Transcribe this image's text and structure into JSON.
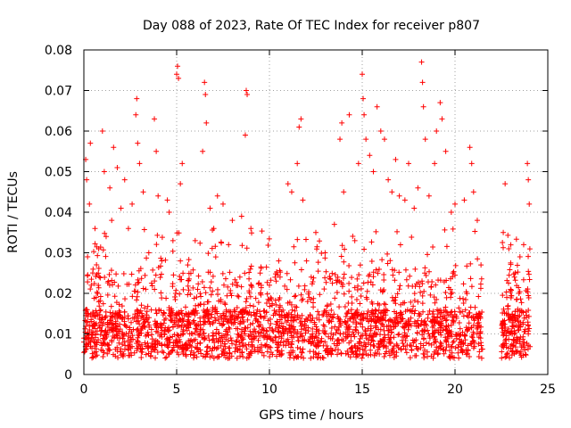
{
  "chart_data": {
    "type": "scatter",
    "title": "Day 088 of 2023, Rate Of TEC Index for receiver p807",
    "xlabel": "GPS time / hours",
    "ylabel": "ROTI / TECUs",
    "xlim": [
      0,
      25
    ],
    "ylim": [
      0,
      0.08
    ],
    "xticks": [
      0,
      5,
      10,
      15,
      20,
      25
    ],
    "yticks": [
      0,
      0.01,
      0.02,
      0.03,
      0.04,
      0.05,
      0.06,
      0.07,
      0.08
    ],
    "xtick_labels": [
      "0",
      "5",
      "10",
      "15",
      "20",
      "25"
    ],
    "ytick_labels": [
      "0",
      "0.01",
      "0.02",
      "0.03",
      "0.04",
      "0.05",
      "0.06",
      "0.07",
      "0.08"
    ],
    "grid": true,
    "marker": "+",
    "series_color": "#ff0000",
    "data_gap_hours": [
      21.5,
      22.5
    ],
    "points": [
      [
        0.0,
        0.008
      ],
      [
        0.1,
        0.053
      ],
      [
        0.15,
        0.048
      ],
      [
        0.2,
        0.029
      ],
      [
        0.3,
        0.042
      ],
      [
        0.35,
        0.057
      ],
      [
        0.4,
        0.022
      ],
      [
        0.5,
        0.012
      ],
      [
        0.6,
        0.036
      ],
      [
        0.8,
        0.031
      ],
      [
        1.0,
        0.06
      ],
      [
        1.1,
        0.05
      ],
      [
        1.2,
        0.034
      ],
      [
        1.4,
        0.046
      ],
      [
        1.5,
        0.038
      ],
      [
        1.6,
        0.056
      ],
      [
        1.8,
        0.051
      ],
      [
        2.0,
        0.041
      ],
      [
        2.2,
        0.048
      ],
      [
        2.4,
        0.036
      ],
      [
        2.6,
        0.042
      ],
      [
        2.8,
        0.064
      ],
      [
        2.85,
        0.068
      ],
      [
        2.9,
        0.057
      ],
      [
        3.0,
        0.052
      ],
      [
        3.2,
        0.045
      ],
      [
        3.5,
        0.03
      ],
      [
        3.8,
        0.063
      ],
      [
        3.9,
        0.055
      ],
      [
        4.0,
        0.044
      ],
      [
        4.2,
        0.028
      ],
      [
        4.5,
        0.043
      ],
      [
        4.6,
        0.04
      ],
      [
        4.8,
        0.033
      ],
      [
        5.0,
        0.074
      ],
      [
        5.05,
        0.076
      ],
      [
        5.1,
        0.073
      ],
      [
        5.2,
        0.047
      ],
      [
        5.3,
        0.052
      ],
      [
        5.6,
        0.027
      ],
      [
        6.0,
        0.033
      ],
      [
        6.4,
        0.055
      ],
      [
        6.5,
        0.072
      ],
      [
        6.55,
        0.069
      ],
      [
        6.6,
        0.062
      ],
      [
        6.8,
        0.041
      ],
      [
        7.0,
        0.036
      ],
      [
        7.2,
        0.044
      ],
      [
        7.5,
        0.042
      ],
      [
        7.8,
        0.032
      ],
      [
        8.0,
        0.038
      ],
      [
        8.5,
        0.039
      ],
      [
        8.7,
        0.059
      ],
      [
        8.75,
        0.07
      ],
      [
        8.8,
        0.069
      ],
      [
        9.0,
        0.036
      ],
      [
        9.5,
        0.025
      ],
      [
        10.0,
        0.022
      ],
      [
        10.5,
        0.028
      ],
      [
        11.0,
        0.047
      ],
      [
        11.2,
        0.045
      ],
      [
        11.5,
        0.052
      ],
      [
        11.6,
        0.061
      ],
      [
        11.7,
        0.063
      ],
      [
        11.8,
        0.043
      ],
      [
        12.0,
        0.028
      ],
      [
        12.5,
        0.035
      ],
      [
        13.0,
        0.03
      ],
      [
        13.5,
        0.037
      ],
      [
        13.8,
        0.058
      ],
      [
        13.9,
        0.062
      ],
      [
        14.0,
        0.045
      ],
      [
        14.3,
        0.064
      ],
      [
        14.6,
        0.033
      ],
      [
        14.8,
        0.052
      ],
      [
        15.0,
        0.074
      ],
      [
        15.05,
        0.068
      ],
      [
        15.1,
        0.064
      ],
      [
        15.2,
        0.058
      ],
      [
        15.4,
        0.054
      ],
      [
        15.6,
        0.05
      ],
      [
        15.8,
        0.066
      ],
      [
        16.0,
        0.06
      ],
      [
        16.2,
        0.058
      ],
      [
        16.4,
        0.048
      ],
      [
        16.6,
        0.045
      ],
      [
        16.8,
        0.053
      ],
      [
        17.0,
        0.044
      ],
      [
        17.3,
        0.043
      ],
      [
        17.5,
        0.052
      ],
      [
        17.8,
        0.041
      ],
      [
        18.0,
        0.046
      ],
      [
        18.2,
        0.077
      ],
      [
        18.25,
        0.072
      ],
      [
        18.3,
        0.066
      ],
      [
        18.4,
        0.058
      ],
      [
        18.6,
        0.044
      ],
      [
        18.9,
        0.052
      ],
      [
        19.0,
        0.06
      ],
      [
        19.2,
        0.067
      ],
      [
        19.3,
        0.063
      ],
      [
        19.5,
        0.055
      ],
      [
        19.8,
        0.04
      ],
      [
        20.0,
        0.042
      ],
      [
        20.5,
        0.043
      ],
      [
        20.8,
        0.056
      ],
      [
        20.9,
        0.052
      ],
      [
        21.0,
        0.045
      ],
      [
        21.2,
        0.038
      ],
      [
        21.4,
        0.027
      ],
      [
        22.6,
        0.035
      ],
      [
        22.7,
        0.047
      ],
      [
        22.9,
        0.031
      ],
      [
        23.2,
        0.024
      ],
      [
        23.5,
        0.029
      ],
      [
        23.7,
        0.032
      ],
      [
        23.9,
        0.052
      ],
      [
        23.95,
        0.048
      ],
      [
        24.0,
        0.042
      ]
    ]
  }
}
